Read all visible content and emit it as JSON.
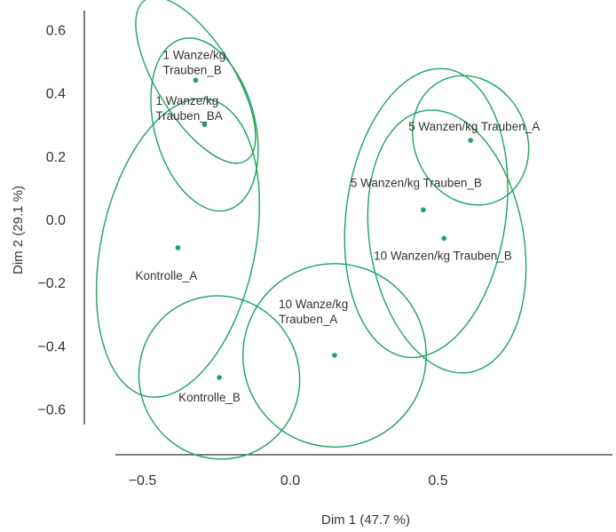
{
  "chart_data": {
    "type": "scatter",
    "xlabel": "Dim 1 (47.7 %)",
    "ylabel": "Dim 2 (29.1 %)",
    "xlim": [
      -0.58,
      1.08
    ],
    "ylim": [
      -0.68,
      0.67
    ],
    "x_ticks": [
      {
        "value": -0.5,
        "label": "−0.5"
      },
      {
        "value": 0.0,
        "label": "0.0"
      },
      {
        "value": 0.5,
        "label": "0.5"
      }
    ],
    "y_ticks": [
      {
        "value": 0.6,
        "label": "0.6"
      },
      {
        "value": 0.4,
        "label": "0.4"
      },
      {
        "value": 0.2,
        "label": "0.2"
      },
      {
        "value": 0.0,
        "label": "0.0"
      },
      {
        "value": -0.2,
        "label": "−0.2"
      },
      {
        "value": -0.4,
        "label": "−0.4"
      },
      {
        "value": -0.6,
        "label": "−0.6"
      }
    ],
    "grid": false,
    "color": "#1aa35c",
    "groups": [
      {
        "lines": [
          "1 Wanze/kg",
          "Trauben_B"
        ],
        "x": -0.32,
        "y": 0.44,
        "ellipse": {
          "cx": -0.32,
          "cy": 0.44,
          "rx": 0.13,
          "ry": 0.3,
          "angle": 32
        }
      },
      {
        "lines": [
          "1 Wanze/kg",
          "Trauben_BA"
        ],
        "x": -0.29,
        "y": 0.3,
        "ellipse": {
          "cx": -0.29,
          "cy": 0.3,
          "rx": 0.17,
          "ry": 0.28,
          "angle": 15
        }
      },
      {
        "lines": [
          "Kontrolle_A"
        ],
        "x": -0.38,
        "y": -0.09,
        "ellipse": {
          "cx": -0.38,
          "cy": -0.09,
          "rx": 0.26,
          "ry": 0.48,
          "angle": -12
        }
      },
      {
        "lines": [
          "Kontrolle_B"
        ],
        "x": -0.24,
        "y": -0.5,
        "ellipse": {
          "cx": -0.24,
          "cy": -0.5,
          "rx": 0.27,
          "ry": 0.26,
          "angle": 30
        }
      },
      {
        "lines": [
          "10 Wanze/kg",
          "Trauben_A"
        ],
        "x": 0.15,
        "y": -0.43,
        "ellipse": {
          "cx": 0.15,
          "cy": -0.43,
          "rx": 0.31,
          "ry": 0.29,
          "angle": 25
        }
      },
      {
        "lines": [
          "5 Wanzen/kg Trauben_A"
        ],
        "x": 0.61,
        "y": 0.25,
        "ellipse": {
          "cx": 0.61,
          "cy": 0.25,
          "rx": 0.19,
          "ry": 0.21,
          "angle": 25
        }
      },
      {
        "lines": [
          "5 Wanzen/kg Trauben_B"
        ],
        "x": 0.45,
        "y": 0.03,
        "ellipse": {
          "cx": 0.46,
          "cy": 0.02,
          "rx": 0.27,
          "ry": 0.46,
          "angle": -8
        }
      },
      {
        "lines": [
          "10 Wanzen/kg Trauben_B"
        ],
        "x": 0.52,
        "y": -0.06,
        "ellipse": {
          "cx": 0.53,
          "cy": -0.07,
          "rx": 0.26,
          "ry": 0.42,
          "angle": 10
        }
      }
    ]
  }
}
